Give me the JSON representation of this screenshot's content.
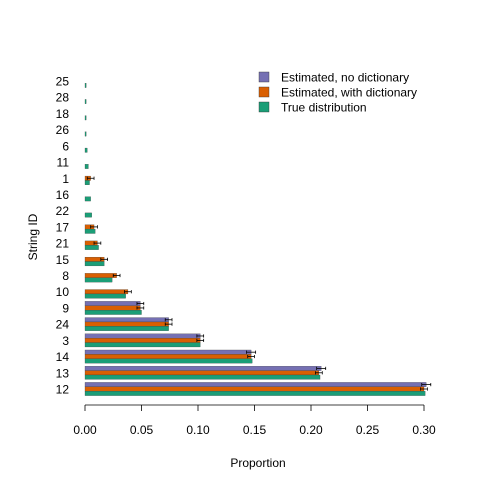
{
  "chart_data": {
    "type": "bar",
    "orientation": "horizontal",
    "title": "",
    "xlabel": "Proportion",
    "ylabel": "String ID",
    "xlim": [
      0,
      0.3
    ],
    "xticks": [
      "0.00",
      "0.05",
      "0.10",
      "0.15",
      "0.20",
      "0.25",
      "0.30"
    ],
    "categories": [
      "25",
      "28",
      "18",
      "26",
      "6",
      "11",
      "1",
      "16",
      "22",
      "17",
      "21",
      "15",
      "8",
      "10",
      "9",
      "24",
      "3",
      "14",
      "13",
      "12"
    ],
    "legend_position": "top-right",
    "series": [
      {
        "name": "Estimated, no dictionary",
        "color": "#7570b3",
        "values": [
          0,
          0,
          0,
          0,
          0,
          0,
          0,
          0,
          0,
          0,
          0,
          0,
          0,
          0,
          0.049,
          0.074,
          0.102,
          0.147,
          0.209,
          0.302
        ],
        "err": [
          0,
          0,
          0,
          0,
          0,
          0,
          0,
          0,
          0,
          0,
          0,
          0,
          0,
          0,
          0.003,
          0.003,
          0.003,
          0.004,
          0.004,
          0.004
        ]
      },
      {
        "name": "Estimated, with dictionary",
        "color": "#d95f02",
        "values": [
          0,
          0,
          0,
          0,
          0,
          0,
          0.005,
          0,
          0,
          0.008,
          0.011,
          0.017,
          0.028,
          0.038,
          0.049,
          0.074,
          0.102,
          0.147,
          0.207,
          0.3
        ],
        "err": [
          0,
          0,
          0,
          0,
          0,
          0,
          0.003,
          0,
          0,
          0.003,
          0.003,
          0.003,
          0.003,
          0.003,
          0.003,
          0.003,
          0.003,
          0.003,
          0.003,
          0.003
        ]
      },
      {
        "name": "True distribution",
        "color": "#1b9e77",
        "values": [
          0.001,
          0.001,
          0.001,
          0.001,
          0.002,
          0.003,
          0.004,
          0.005,
          0.006,
          0.009,
          0.012,
          0.017,
          0.024,
          0.036,
          0.05,
          0.074,
          0.102,
          0.148,
          0.208,
          0.301
        ],
        "err": [
          0,
          0,
          0,
          0,
          0,
          0,
          0,
          0,
          0,
          0,
          0,
          0,
          0,
          0,
          0,
          0,
          0,
          0,
          0,
          0
        ]
      }
    ]
  }
}
